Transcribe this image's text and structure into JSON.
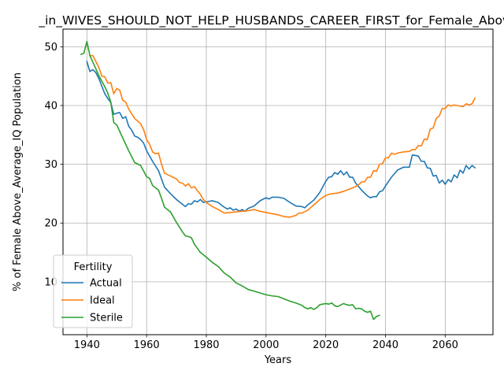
{
  "chart_data": {
    "type": "line",
    "title": "_in_WIVES_SHOULD_NOT_HELP_HUSBANDS_CAREER_FIRST_for_Female_Above",
    "xlabel": "Years",
    "ylabel": "% of Female Above_Average_IQ Population",
    "xlim": [
      1932,
      2076
    ],
    "ylim": [
      1,
      53
    ],
    "xticks": [
      1940,
      1960,
      1980,
      2000,
      2020,
      2040,
      2060
    ],
    "xtick_labels": [
      "1940",
      "1960",
      "1980",
      "2000",
      "2020",
      "2040",
      "2060"
    ],
    "yticks": [
      10,
      20,
      30,
      40,
      50
    ],
    "ytick_labels": [
      "10",
      "20",
      "30",
      "40",
      "50"
    ],
    "grid": true,
    "legend": {
      "title": "Fertility",
      "placement": "lower-left"
    },
    "series": [
      {
        "name": "Actual",
        "color": "#1f77b4",
        "points": [
          [
            1940,
            47.5
          ],
          [
            1941,
            45.8
          ],
          [
            1942,
            46.1
          ],
          [
            1943,
            45.6
          ],
          [
            1944,
            44.6
          ],
          [
            1945,
            43.3
          ],
          [
            1946,
            42.0
          ],
          [
            1947,
            41.2
          ],
          [
            1948,
            40.5
          ],
          [
            1949,
            38.5
          ],
          [
            1950,
            38.7
          ],
          [
            1951,
            38.8
          ],
          [
            1952,
            37.8
          ],
          [
            1953,
            38.1
          ],
          [
            1954,
            36.5
          ],
          [
            1955,
            35.8
          ],
          [
            1956,
            34.8
          ],
          [
            1957,
            34.6
          ],
          [
            1958,
            34.2
          ],
          [
            1959,
            33.6
          ],
          [
            1960,
            32.3
          ],
          [
            1962,
            30.5
          ],
          [
            1964,
            28.9
          ],
          [
            1966,
            26.1
          ],
          [
            1968,
            25.0
          ],
          [
            1970,
            24.0
          ],
          [
            1972,
            23.2
          ],
          [
            1973,
            22.8
          ],
          [
            1974,
            23.3
          ],
          [
            1975,
            23.2
          ],
          [
            1976,
            23.8
          ],
          [
            1977,
            23.6
          ],
          [
            1978,
            24.0
          ],
          [
            1979,
            23.5
          ],
          [
            1980,
            23.6
          ],
          [
            1982,
            23.8
          ],
          [
            1984,
            23.5
          ],
          [
            1986,
            22.7
          ],
          [
            1987,
            22.4
          ],
          [
            1988,
            22.6
          ],
          [
            1989,
            22.2
          ],
          [
            1990,
            22.4
          ],
          [
            1991,
            22.0
          ],
          [
            1992,
            22.3
          ],
          [
            1993,
            22.0
          ],
          [
            1994,
            22.5
          ],
          [
            1996,
            22.9
          ],
          [
            1998,
            23.8
          ],
          [
            2000,
            24.3
          ],
          [
            2001,
            24.1
          ],
          [
            2002,
            24.4
          ],
          [
            2004,
            24.4
          ],
          [
            2006,
            24.2
          ],
          [
            2008,
            23.5
          ],
          [
            2010,
            22.9
          ],
          [
            2012,
            22.8
          ],
          [
            2013,
            22.6
          ],
          [
            2014,
            23.1
          ],
          [
            2016,
            23.9
          ],
          [
            2018,
            25.2
          ],
          [
            2020,
            27.1
          ],
          [
            2021,
            27.8
          ],
          [
            2022,
            27.9
          ],
          [
            2023,
            28.6
          ],
          [
            2024,
            28.3
          ],
          [
            2025,
            28.9
          ],
          [
            2026,
            28.2
          ],
          [
            2027,
            28.7
          ],
          [
            2028,
            27.8
          ],
          [
            2029,
            27.8
          ],
          [
            2030,
            26.8
          ],
          [
            2032,
            25.6
          ],
          [
            2034,
            24.6
          ],
          [
            2035,
            24.3
          ],
          [
            2036,
            24.5
          ],
          [
            2037,
            24.5
          ],
          [
            2038,
            25.3
          ],
          [
            2039,
            25.5
          ],
          [
            2040,
            26.3
          ],
          [
            2042,
            27.8
          ],
          [
            2044,
            29.0
          ],
          [
            2046,
            29.5
          ],
          [
            2048,
            29.5
          ],
          [
            2049,
            31.6
          ],
          [
            2050,
            31.5
          ],
          [
            2051,
            31.4
          ],
          [
            2052,
            30.5
          ],
          [
            2053,
            30.5
          ],
          [
            2054,
            29.4
          ],
          [
            2055,
            29.3
          ],
          [
            2056,
            28.0
          ],
          [
            2057,
            28.1
          ],
          [
            2058,
            26.8
          ],
          [
            2059,
            27.3
          ],
          [
            2060,
            26.6
          ],
          [
            2061,
            27.4
          ],
          [
            2062,
            27.0
          ],
          [
            2063,
            28.2
          ],
          [
            2064,
            27.7
          ],
          [
            2065,
            29.0
          ],
          [
            2066,
            28.5
          ],
          [
            2067,
            29.8
          ],
          [
            2068,
            29.2
          ],
          [
            2069,
            29.8
          ],
          [
            2070,
            29.4
          ]
        ]
      },
      {
        "name": "Ideal",
        "color": "#ff7f0e",
        "points": [
          [
            1941,
            48.5
          ],
          [
            1942,
            48.5
          ],
          [
            1943,
            47.5
          ],
          [
            1944,
            46.5
          ],
          [
            1945,
            45.0
          ],
          [
            1946,
            44.9
          ],
          [
            1947,
            43.8
          ],
          [
            1948,
            43.9
          ],
          [
            1949,
            42.0
          ],
          [
            1950,
            42.9
          ],
          [
            1951,
            42.6
          ],
          [
            1952,
            40.9
          ],
          [
            1953,
            40.6
          ],
          [
            1954,
            39.4
          ],
          [
            1956,
            37.8
          ],
          [
            1958,
            36.9
          ],
          [
            1959,
            35.9
          ],
          [
            1960,
            34.2
          ],
          [
            1961,
            33.4
          ],
          [
            1962,
            32.1
          ],
          [
            1963,
            31.8
          ],
          [
            1964,
            31.9
          ],
          [
            1965,
            30.0
          ],
          [
            1966,
            28.5
          ],
          [
            1968,
            28.0
          ],
          [
            1970,
            27.5
          ],
          [
            1971,
            26.9
          ],
          [
            1972,
            26.8
          ],
          [
            1973,
            26.3
          ],
          [
            1974,
            26.7
          ],
          [
            1975,
            26.0
          ],
          [
            1976,
            26.2
          ],
          [
            1977,
            25.5
          ],
          [
            1978,
            24.9
          ],
          [
            1979,
            24.0
          ],
          [
            1980,
            23.5
          ],
          [
            1982,
            22.8
          ],
          [
            1984,
            22.3
          ],
          [
            1986,
            21.7
          ],
          [
            1988,
            21.8
          ],
          [
            1990,
            21.9
          ],
          [
            1992,
            22.0
          ],
          [
            1994,
            22.1
          ],
          [
            1996,
            22.3
          ],
          [
            1998,
            22.0
          ],
          [
            2000,
            21.8
          ],
          [
            2002,
            21.6
          ],
          [
            2004,
            21.4
          ],
          [
            2006,
            21.1
          ],
          [
            2008,
            21.0
          ],
          [
            2010,
            21.3
          ],
          [
            2011,
            21.7
          ],
          [
            2012,
            21.7
          ],
          [
            2014,
            22.2
          ],
          [
            2016,
            23.1
          ],
          [
            2018,
            24.0
          ],
          [
            2020,
            24.7
          ],
          [
            2022,
            25.0
          ],
          [
            2024,
            25.1
          ],
          [
            2026,
            25.4
          ],
          [
            2028,
            25.8
          ],
          [
            2030,
            26.2
          ],
          [
            2031,
            26.5
          ],
          [
            2032,
            27.0
          ],
          [
            2033,
            27.0
          ],
          [
            2034,
            27.8
          ],
          [
            2035,
            27.8
          ],
          [
            2036,
            28.9
          ],
          [
            2037,
            28.8
          ],
          [
            2038,
            30.0
          ],
          [
            2039,
            30.1
          ],
          [
            2040,
            31.1
          ],
          [
            2041,
            31.1
          ],
          [
            2042,
            31.9
          ],
          [
            2043,
            31.7
          ],
          [
            2044,
            31.9
          ],
          [
            2046,
            32.1
          ],
          [
            2048,
            32.2
          ],
          [
            2049,
            32.5
          ],
          [
            2050,
            32.5
          ],
          [
            2051,
            33.2
          ],
          [
            2052,
            33.1
          ],
          [
            2053,
            34.3
          ],
          [
            2054,
            34.2
          ],
          [
            2055,
            36.0
          ],
          [
            2056,
            36.2
          ],
          [
            2057,
            37.8
          ],
          [
            2058,
            38.2
          ],
          [
            2059,
            39.5
          ],
          [
            2060,
            39.5
          ],
          [
            2061,
            40.1
          ],
          [
            2062,
            39.9
          ],
          [
            2063,
            40.1
          ],
          [
            2064,
            40.0
          ],
          [
            2066,
            39.8
          ],
          [
            2067,
            40.3
          ],
          [
            2068,
            40.1
          ],
          [
            2069,
            40.3
          ],
          [
            2070,
            41.3
          ]
        ]
      },
      {
        "name": "Sterile",
        "color": "#2ca02c",
        "points": [
          [
            1938,
            48.7
          ],
          [
            1939,
            48.9
          ],
          [
            1940,
            50.9
          ],
          [
            1941,
            48.5
          ],
          [
            1942,
            47.4
          ],
          [
            1944,
            45.1
          ],
          [
            1946,
            43.2
          ],
          [
            1947,
            42.1
          ],
          [
            1948,
            40.6
          ],
          [
            1949,
            37.1
          ],
          [
            1950,
            36.7
          ],
          [
            1952,
            34.5
          ],
          [
            1954,
            32.3
          ],
          [
            1956,
            30.3
          ],
          [
            1958,
            29.8
          ],
          [
            1960,
            27.9
          ],
          [
            1961,
            27.6
          ],
          [
            1962,
            26.4
          ],
          [
            1964,
            25.6
          ],
          [
            1965,
            24.2
          ],
          [
            1966,
            22.7
          ],
          [
            1967,
            22.3
          ],
          [
            1968,
            21.9
          ],
          [
            1970,
            20.1
          ],
          [
            1972,
            18.5
          ],
          [
            1973,
            17.8
          ],
          [
            1974,
            17.7
          ],
          [
            1975,
            17.5
          ],
          [
            1976,
            16.4
          ],
          [
            1978,
            15.0
          ],
          [
            1980,
            14.2
          ],
          [
            1982,
            13.3
          ],
          [
            1984,
            12.6
          ],
          [
            1986,
            11.5
          ],
          [
            1988,
            10.8
          ],
          [
            1990,
            9.8
          ],
          [
            1992,
            9.3
          ],
          [
            1994,
            8.7
          ],
          [
            1996,
            8.4
          ],
          [
            1998,
            8.1
          ],
          [
            2000,
            7.8
          ],
          [
            2002,
            7.6
          ],
          [
            2004,
            7.5
          ],
          [
            2006,
            7.1
          ],
          [
            2008,
            6.7
          ],
          [
            2010,
            6.4
          ],
          [
            2012,
            6.0
          ],
          [
            2013,
            5.6
          ],
          [
            2014,
            5.4
          ],
          [
            2015,
            5.6
          ],
          [
            2016,
            5.3
          ],
          [
            2017,
            5.6
          ],
          [
            2018,
            6.1
          ],
          [
            2020,
            6.3
          ],
          [
            2021,
            6.2
          ],
          [
            2022,
            6.4
          ],
          [
            2023,
            5.9
          ],
          [
            2024,
            5.8
          ],
          [
            2026,
            6.3
          ],
          [
            2027,
            6.1
          ],
          [
            2028,
            6.0
          ],
          [
            2029,
            6.1
          ],
          [
            2030,
            5.4
          ],
          [
            2031,
            5.5
          ],
          [
            2032,
            5.4
          ],
          [
            2033,
            5.0
          ],
          [
            2034,
            4.8
          ],
          [
            2035,
            5.0
          ],
          [
            2036,
            3.6
          ],
          [
            2037,
            4.1
          ],
          [
            2038,
            4.3
          ]
        ]
      }
    ]
  }
}
